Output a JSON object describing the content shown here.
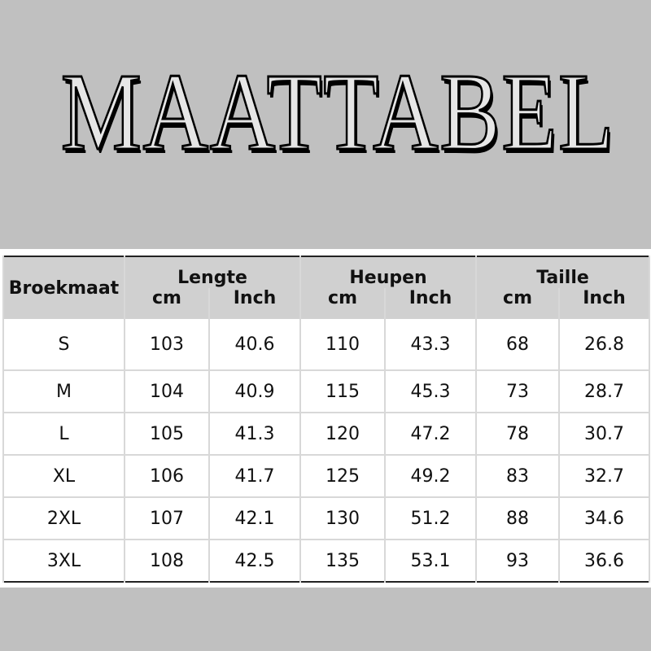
{
  "title": "MAATTABEL",
  "table": {
    "size_header": "Broekmaat",
    "groups": [
      "Lengte",
      "Heupen",
      "Taille"
    ],
    "units": [
      "cm",
      "Inch"
    ],
    "rows": [
      [
        "S",
        "103",
        "40.6",
        "110",
        "43.3",
        "68",
        "26.8"
      ],
      [
        "M",
        "104",
        "40.9",
        "115",
        "45.3",
        "73",
        "28.7"
      ],
      [
        "L",
        "105",
        "41.3",
        "120",
        "47.2",
        "78",
        "30.7"
      ],
      [
        "XL",
        "106",
        "41.7",
        "125",
        "49.2",
        "83",
        "32.7"
      ],
      [
        "2XL",
        "107",
        "42.1",
        "130",
        "51.2",
        "88",
        "34.6"
      ],
      [
        "3XL",
        "108",
        "42.5",
        "135",
        "53.1",
        "93",
        "36.6"
      ]
    ]
  },
  "colors": {
    "background": "#c0c0c0",
    "header": "#d0d0d0"
  }
}
